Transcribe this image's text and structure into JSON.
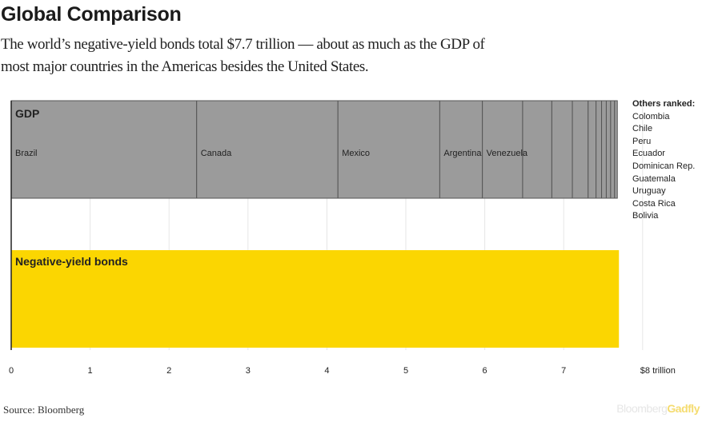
{
  "header": {
    "title": "Global Comparison",
    "subtitle": "The world’s negative-yield bonds total $7.7 trillion — about as much as the GDP of most major countries in the Americas besides the United States."
  },
  "others": {
    "heading": "Others ranked:",
    "items": [
      "Colombia",
      "Chile",
      "Peru",
      "Ecuador",
      "Dominican Rep.",
      "Guatemala",
      "Uruguay",
      "Costa Rica",
      "Bolivia"
    ]
  },
  "footer": {
    "source": "Source: Bloomberg",
    "brand_part1": "Bloomberg",
    "brand_part2": "Gadfly"
  },
  "colors": {
    "gdp_fill": "#9b9b9b",
    "gdp_stroke": "#555555",
    "bonds_fill": "#fbd601",
    "grid": "#e6e6e6",
    "axis": "#222222"
  },
  "chart_data": {
    "type": "bar",
    "orientation": "horizontal",
    "stacked": true,
    "xlim": [
      0,
      8
    ],
    "x_ticks": [
      "0",
      "1",
      "2",
      "3",
      "4",
      "5",
      "6",
      "7",
      "$8 trillion"
    ],
    "grid": true,
    "series": [
      {
        "name": "GDP",
        "segments": [
          {
            "label": "Brazil",
            "value": 2.35
          },
          {
            "label": "Canada",
            "value": 1.79
          },
          {
            "label": "Mexico",
            "value": 1.29
          },
          {
            "label": "Argentina",
            "value": 0.54
          },
          {
            "label": "Venezuela",
            "value": 0.51
          },
          {
            "label": "Colombia",
            "value": 0.37
          },
          {
            "label": "Chile",
            "value": 0.26
          },
          {
            "label": "Peru",
            "value": 0.2
          },
          {
            "label": "Ecuador",
            "value": 0.1
          },
          {
            "label": "Dominican Rep.",
            "value": 0.07
          },
          {
            "label": "Guatemala",
            "value": 0.06
          },
          {
            "label": "Uruguay",
            "value": 0.055
          },
          {
            "label": "Costa Rica",
            "value": 0.05
          },
          {
            "label": "Bolivia",
            "value": 0.035
          }
        ]
      },
      {
        "name": "Negative-yield bonds",
        "value": 7.7
      }
    ]
  }
}
